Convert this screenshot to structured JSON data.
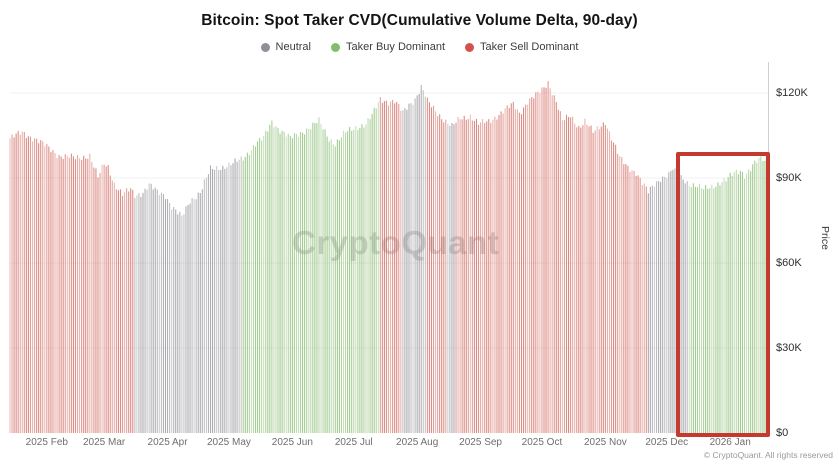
{
  "title": "Bitcoin: Spot Taker CVD(Cumulative Volume Delta, 90-day)",
  "legend": {
    "items": [
      {
        "label": "Neutral",
        "status": "neutral",
        "color": "#8f8f99"
      },
      {
        "label": "Taker Buy Dominant",
        "status": "buy",
        "color": "#7fbf6b"
      },
      {
        "label": "Taker Sell Dominant",
        "status": "sell",
        "color": "#d4524a"
      }
    ]
  },
  "watermark": "CryptoQuant",
  "footer": "© CryptoQuant. All rights reserved",
  "y_axis_title": "Price",
  "highlight_box": {
    "from_day": 326,
    "to_day": 371,
    "color": "#c43a2f",
    "meaning": "recent taker-buy-dominant period (2025 Dec - 2026 Jan)"
  },
  "chart_data": {
    "type": "bar",
    "title": "Bitcoin: Spot Taker CVD(Cumulative Volume Delta, 90-day)",
    "ylabel": "Price",
    "price_unit": "USD thousands",
    "ylim": [
      0,
      130
    ],
    "grid": "faint horizontal lines at y ticks",
    "legend_position": "top center",
    "x_start_date": "2025-01-14",
    "days_total": 370,
    "y_ticks": [
      {
        "label": "$0",
        "value": 0
      },
      {
        "label": "$30K",
        "value": 30
      },
      {
        "label": "$60K",
        "value": 60
      },
      {
        "label": "$90K",
        "value": 90
      },
      {
        "label": "$120K",
        "value": 120
      }
    ],
    "x_ticks": [
      {
        "label": "2025 Feb",
        "day": 18
      },
      {
        "label": "2025 Mar",
        "day": 46
      },
      {
        "label": "2025 Apr",
        "day": 77
      },
      {
        "label": "2025 May",
        "day": 107
      },
      {
        "label": "2025 Jun",
        "day": 138
      },
      {
        "label": "2025 Jul",
        "day": 168
      },
      {
        "label": "2025 Aug",
        "day": 199
      },
      {
        "label": "2025 Sep",
        "day": 230
      },
      {
        "label": "2025 Oct",
        "day": 260
      },
      {
        "label": "2025 Nov",
        "day": 291
      },
      {
        "label": "2025 Dec",
        "day": 321
      },
      {
        "label": "2026 Jan",
        "day": 352
      }
    ],
    "price_anchors": [
      [
        0,
        104
      ],
      [
        6,
        106
      ],
      [
        12,
        104
      ],
      [
        18,
        101
      ],
      [
        24,
        98
      ],
      [
        32,
        97
      ],
      [
        39,
        98
      ],
      [
        43,
        90
      ],
      [
        46,
        95
      ],
      [
        48,
        94
      ],
      [
        51,
        88
      ],
      [
        55,
        84
      ],
      [
        59,
        86
      ],
      [
        61,
        84
      ],
      [
        65,
        85
      ],
      [
        68,
        87.5
      ],
      [
        72,
        85
      ],
      [
        76,
        84
      ],
      [
        79,
        80
      ],
      [
        84,
        76
      ],
      [
        88,
        82
      ],
      [
        93,
        85
      ],
      [
        98,
        93
      ],
      [
        104,
        94
      ],
      [
        109,
        95
      ],
      [
        114,
        97
      ],
      [
        120,
        102
      ],
      [
        124,
        104
      ],
      [
        128,
        110
      ],
      [
        132,
        107
      ],
      [
        137,
        104
      ],
      [
        142,
        106
      ],
      [
        147,
        108
      ],
      [
        151,
        110
      ],
      [
        156,
        104
      ],
      [
        159,
        102
      ],
      [
        164,
        106
      ],
      [
        169,
        108
      ],
      [
        174,
        109
      ],
      [
        177,
        112
      ],
      [
        181,
        118
      ],
      [
        185,
        117
      ],
      [
        188,
        117
      ],
      [
        192,
        113
      ],
      [
        195,
        116
      ],
      [
        198,
        118
      ],
      [
        201,
        122
      ],
      [
        203,
        119
      ],
      [
        204,
        117
      ],
      [
        209,
        113
      ],
      [
        213,
        110
      ],
      [
        216,
        108
      ],
      [
        220,
        111
      ],
      [
        225,
        112
      ],
      [
        229,
        109
      ],
      [
        234,
        110
      ],
      [
        238,
        112
      ],
      [
        242,
        114
      ],
      [
        246,
        116
      ],
      [
        249,
        113
      ],
      [
        253,
        117
      ],
      [
        257,
        119
      ],
      [
        260,
        121
      ],
      [
        263,
        124
      ],
      [
        267,
        117
      ],
      [
        270,
        110
      ],
      [
        274,
        112
      ],
      [
        278,
        108
      ],
      [
        281,
        110
      ],
      [
        285,
        106
      ],
      [
        288,
        108
      ],
      [
        291,
        110
      ],
      [
        294,
        104
      ],
      [
        298,
        97
      ],
      [
        302,
        94
      ],
      [
        306,
        92
      ],
      [
        309,
        88
      ],
      [
        312,
        85
      ],
      [
        315,
        88
      ],
      [
        318,
        90
      ],
      [
        322,
        91
      ],
      [
        324,
        93
      ],
      [
        326,
        91
      ],
      [
        329,
        90
      ],
      [
        332,
        88
      ],
      [
        335,
        87
      ],
      [
        339,
        86
      ],
      [
        342,
        87
      ],
      [
        346,
        88
      ],
      [
        350,
        89
      ],
      [
        354,
        92
      ],
      [
        357,
        93
      ],
      [
        359,
        91
      ],
      [
        362,
        93
      ],
      [
        364,
        95
      ],
      [
        367,
        97
      ],
      [
        368,
        97
      ],
      [
        370,
        95
      ]
    ],
    "status_segments": [
      {
        "from": 0,
        "to": 61,
        "status": "sell"
      },
      {
        "from": 61,
        "to": 114,
        "status": "neutral"
      },
      {
        "from": 114,
        "to": 181,
        "status": "buy"
      },
      {
        "from": 181,
        "to": 192,
        "status": "sell"
      },
      {
        "from": 192,
        "to": 204,
        "status": "neutral"
      },
      {
        "from": 204,
        "to": 214,
        "status": "sell"
      },
      {
        "from": 214,
        "to": 218,
        "status": "neutral"
      },
      {
        "from": 218,
        "to": 312,
        "status": "sell"
      },
      {
        "from": 312,
        "to": 332,
        "status": "neutral"
      },
      {
        "from": 332,
        "to": 371,
        "status": "buy"
      }
    ],
    "status_colors": {
      "neutral": "#87878f",
      "buy": "#7cb562",
      "sell": "#cf5a50"
    }
  }
}
